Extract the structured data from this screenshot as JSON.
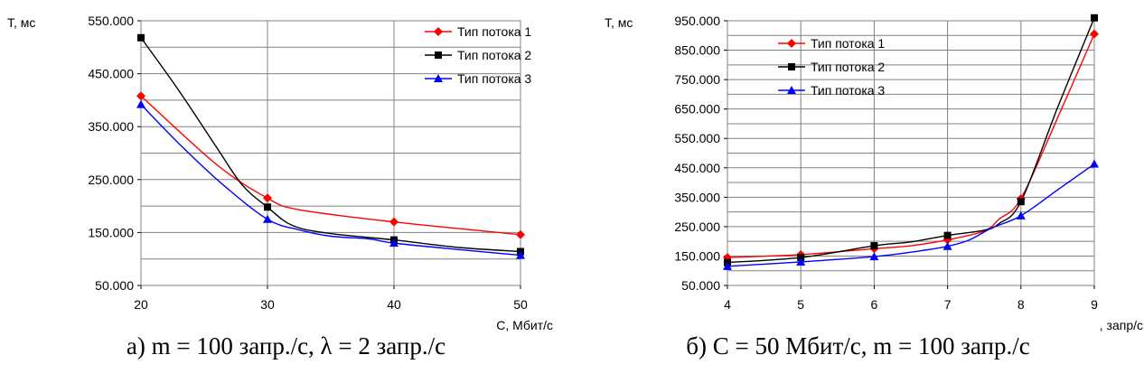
{
  "chart_data": [
    {
      "type": "line",
      "ylabel": "T, мс",
      "xlabel": "C, Мбит/с",
      "xlim": [
        20,
        50
      ],
      "ylim": [
        50,
        550
      ],
      "x_ticks": [
        "20",
        "30",
        "40",
        "50"
      ],
      "y_ticks": [
        "50.000",
        "150.000",
        "250.000",
        "350.000",
        "450.000",
        "550.000"
      ],
      "grid": "on",
      "legend": "top-right",
      "series": [
        {
          "name": "Тип потока 1",
          "color": "#ff0000",
          "marker": "diamond",
          "x": [
            20,
            30,
            40,
            50
          ],
          "values": [
            408,
            215,
            170,
            146
          ],
          "curve_x": [
            20,
            26,
            30,
            32.5,
            40,
            50
          ],
          "curve_y": [
            408,
            278,
            215,
            193,
            170,
            146
          ]
        },
        {
          "name": "Тип потока 2",
          "color": "#000000",
          "marker": "square",
          "x": [
            20,
            30,
            40,
            50
          ],
          "values": [
            518,
            198,
            136,
            114
          ],
          "curve_x": [
            20,
            23,
            26,
            28,
            30,
            32,
            35,
            40,
            45,
            50
          ],
          "curve_y": [
            518,
            418,
            310,
            240,
            198,
            163,
            148,
            136,
            122,
            114
          ]
        },
        {
          "name": "Тип потока 3",
          "color": "#0000ff",
          "marker": "triangle",
          "x": [
            20,
            30,
            40,
            50
          ],
          "values": [
            392,
            175,
            130,
            107
          ],
          "curve_x": [
            20,
            23,
            26.5,
            30,
            32.5,
            35,
            38,
            40,
            45,
            50
          ],
          "curve_y": [
            392,
            318,
            240,
            175,
            155,
            143,
            138,
            130,
            118,
            107
          ]
        }
      ],
      "caption": "а) m = 100 запр./с, λ = 2 запр./с"
    },
    {
      "type": "line",
      "ylabel": "T, мс",
      "xlabel": ", запр/с",
      "xlim": [
        4,
        9
      ],
      "ylim": [
        50,
        950
      ],
      "x_ticks": [
        "4",
        "5",
        "6",
        "7",
        "8",
        "9"
      ],
      "y_ticks": [
        "50.000",
        "150.000",
        "250.000",
        "350.000",
        "450.000",
        "550.000",
        "650.000",
        "750.000",
        "850.000",
        "950.000"
      ],
      "grid": "on",
      "legend": "top-left",
      "series": [
        {
          "name": "Тип потока 1",
          "color": "#ff0000",
          "marker": "diamond",
          "x": [
            4,
            5,
            6,
            7,
            8,
            9
          ],
          "values": [
            145,
            155,
            175,
            205,
            345,
            905
          ],
          "curve_x": [
            4,
            5,
            6,
            6.5,
            7,
            7.5,
            7.7,
            8,
            8.5,
            9
          ],
          "curve_y": [
            145,
            155,
            175,
            185,
            205,
            235,
            275,
            345,
            620,
            905
          ]
        },
        {
          "name": "Тип потока 2",
          "color": "#000000",
          "marker": "square",
          "x": [
            4,
            5,
            6,
            7,
            8,
            9
          ],
          "values": [
            128,
            145,
            185,
            220,
            335,
            960
          ],
          "curve_x": [
            4,
            5,
            6,
            6.5,
            7,
            7.5,
            7.7,
            8,
            8.5,
            9
          ],
          "curve_y": [
            128,
            145,
            185,
            198,
            220,
            238,
            260,
            335,
            655,
            960
          ]
        },
        {
          "name": "Тип потока 3",
          "color": "#0000ff",
          "marker": "triangle",
          "x": [
            4,
            5,
            6,
            7,
            8,
            9
          ],
          "values": [
            115,
            130,
            148,
            183,
            287,
            463
          ],
          "curve_x": [
            4,
            5,
            6,
            6.5,
            7,
            7.3,
            7.6,
            8,
            8.5,
            9
          ],
          "curve_y": [
            115,
            130,
            148,
            163,
            183,
            205,
            245,
            287,
            375,
            463
          ]
        }
      ],
      "caption": "б) C = 50 Мбит/с, m = 100 запр./с"
    }
  ]
}
